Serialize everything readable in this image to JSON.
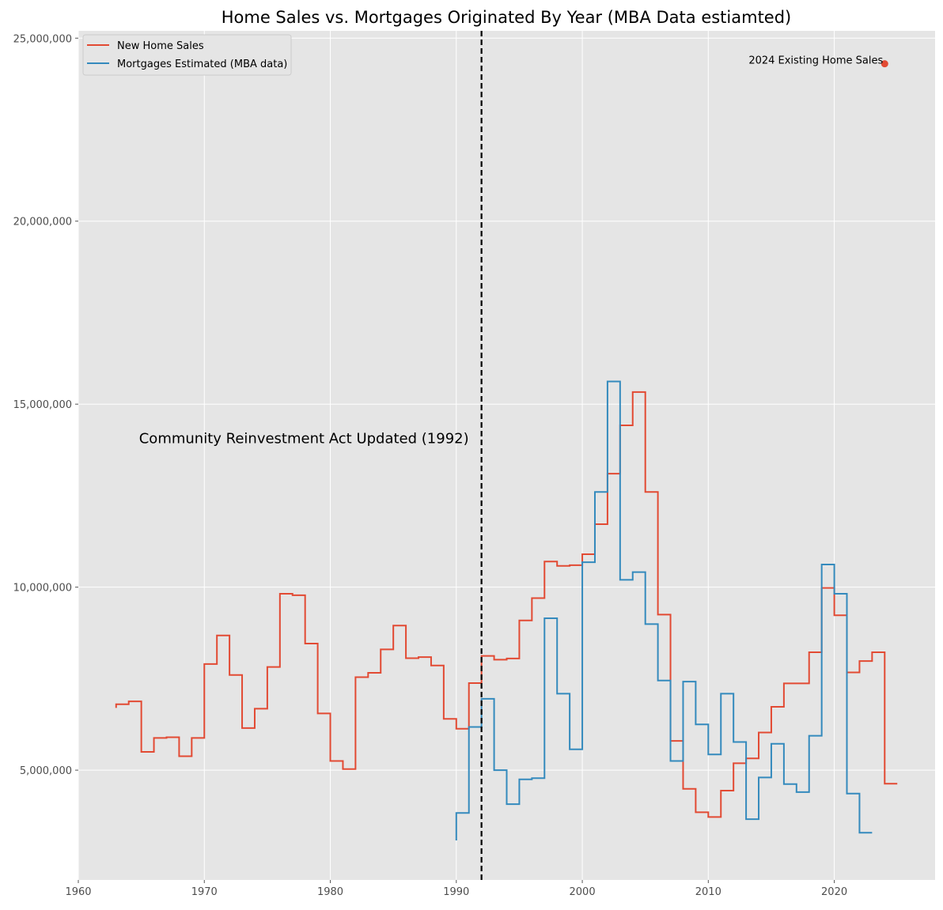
{
  "chart_data": {
    "type": "line",
    "drawstyle": "steps-pre",
    "title": "Home Sales vs. Mortgages Originated By Year (MBA Data estiamted)",
    "xlabel": "",
    "ylabel": "",
    "xlim": [
      1960,
      2028
    ],
    "ylim": [
      2000000,
      25200000
    ],
    "xticks": [
      1960,
      1970,
      1980,
      1990,
      2000,
      2010,
      2020
    ],
    "xtick_labels": [
      "1960",
      "1970",
      "1980",
      "1990",
      "2000",
      "2010",
      "2020"
    ],
    "yticks": [
      5000000,
      10000000,
      15000000,
      20000000,
      25000000
    ],
    "ytick_labels": [
      "5,000,000",
      "10,000,000",
      "15,000,000",
      "20,000,000",
      "25,000,000"
    ],
    "grid": true,
    "legend_position": "top-left",
    "series": [
      {
        "name": "New Home Sales",
        "color": "#E24A33",
        "x": [
          1963,
          1964,
          1965,
          1966,
          1967,
          1968,
          1969,
          1970,
          1971,
          1972,
          1973,
          1974,
          1975,
          1976,
          1977,
          1978,
          1979,
          1980,
          1981,
          1982,
          1983,
          1984,
          1985,
          1986,
          1987,
          1988,
          1989,
          1990,
          1991,
          1992,
          1993,
          1994,
          1995,
          1996,
          1997,
          1998,
          1999,
          2000,
          2001,
          2002,
          2003,
          2004,
          2005,
          2006,
          2007,
          2008,
          2009,
          2010,
          2011,
          2012,
          2013,
          2014,
          2015,
          2016,
          2017,
          2018,
          2019,
          2020,
          2021,
          2022,
          2023,
          2024,
          2025
        ],
        "values": [
          6700000,
          6800000,
          6880000,
          5500000,
          5880000,
          5900000,
          5380000,
          5880000,
          7900000,
          8680000,
          7600000,
          6150000,
          6680000,
          7820000,
          9820000,
          9780000,
          8460000,
          6550000,
          5250000,
          5030000,
          7540000,
          7660000,
          8300000,
          8950000,
          8060000,
          8090000,
          7860000,
          6400000,
          6130000,
          7380000,
          8120000,
          8020000,
          8050000,
          9090000,
          9700000,
          10700000,
          10580000,
          10600000,
          10900000,
          11720000,
          13100000,
          14420000,
          15330000,
          12600000,
          9250000,
          5800000,
          4490000,
          3850000,
          3720000,
          4440000,
          5190000,
          5320000,
          6030000,
          6730000,
          7370000,
          7370000,
          8220000,
          9980000,
          9230000,
          7670000,
          7980000,
          8220000,
          4630000
        ]
      },
      {
        "name": "Mortgages Estimated (MBA data)",
        "color": "#348ABD",
        "x": [
          1990,
          1991,
          1992,
          1993,
          1994,
          1995,
          1996,
          1997,
          1998,
          1999,
          2000,
          2001,
          2002,
          2003,
          2004,
          2005,
          2006,
          2007,
          2008,
          2009,
          2010,
          2011,
          2012,
          2013,
          2014,
          2015,
          2016,
          2017,
          2018,
          2019,
          2020,
          2021,
          2022,
          2023
        ],
        "values": [
          3080000,
          3830000,
          6180000,
          6950000,
          5000000,
          4070000,
          4750000,
          4780000,
          9150000,
          7090000,
          5570000,
          10680000,
          12600000,
          15620000,
          10200000,
          10410000,
          8990000,
          7450000,
          5250000,
          7420000,
          6250000,
          5430000,
          7090000,
          5770000,
          3660000,
          4800000,
          5720000,
          4620000,
          4400000,
          5940000,
          10620000,
          9820000,
          4360000,
          3290000
        ]
      }
    ],
    "annotations": [
      {
        "type": "vline",
        "x": 1992,
        "style": "dashed",
        "color": "#000000"
      },
      {
        "type": "text",
        "text": "Community Reinvestment Act Updated (1992)",
        "x": 1992,
        "y": 14000000
      },
      {
        "type": "point",
        "text": "2024 Existing Home Sales",
        "x": 2024,
        "y": 24300000,
        "color": "#E24A33"
      }
    ]
  }
}
